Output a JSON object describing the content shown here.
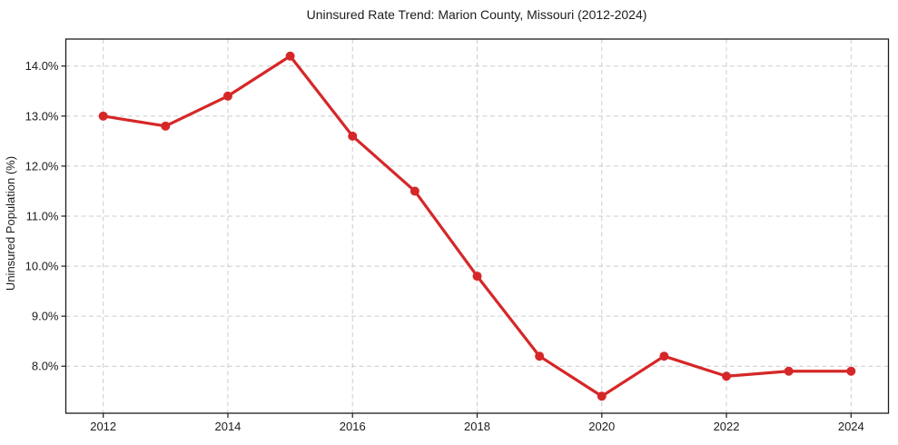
{
  "figure": {
    "background": "#ffffff"
  },
  "chart_data": {
    "type": "line",
    "title": "Uninsured Rate Trend: Marion County, Missouri (2012-2024)",
    "xlabel": "",
    "ylabel": "Uninsured Population (%)",
    "x": [
      2012,
      2013,
      2014,
      2015,
      2016,
      2017,
      2018,
      2019,
      2020,
      2021,
      2022,
      2023,
      2024
    ],
    "series": [
      {
        "name": "Uninsured Population (%)",
        "values": [
          13.0,
          12.8,
          13.4,
          14.2,
          12.6,
          11.5,
          9.8,
          8.2,
          7.4,
          8.2,
          7.8,
          7.9,
          7.9
        ]
      }
    ],
    "x_ticks": [
      2012,
      2014,
      2016,
      2018,
      2020,
      2022,
      2024
    ],
    "x_tick_labels": [
      "2012",
      "2014",
      "2016",
      "2018",
      "2020",
      "2022",
      "2024"
    ],
    "y_ticks": [
      8,
      9,
      10,
      11,
      12,
      13,
      14
    ],
    "y_tick_labels": [
      "8.0%",
      "9.0%",
      "10.0%",
      "11.0%",
      "12.0%",
      "13.0%",
      "14.0%"
    ],
    "xlim": [
      2011.4,
      2024.6
    ],
    "ylim": [
      7.06,
      14.54
    ],
    "grid": true,
    "grid_style": "dashed",
    "legend_position": "none",
    "line_color": "#d62728",
    "marker": "circle",
    "grid_color": "#cccccc",
    "axis_color": "#1c1c1c",
    "text_color": "#1c1c1c"
  }
}
